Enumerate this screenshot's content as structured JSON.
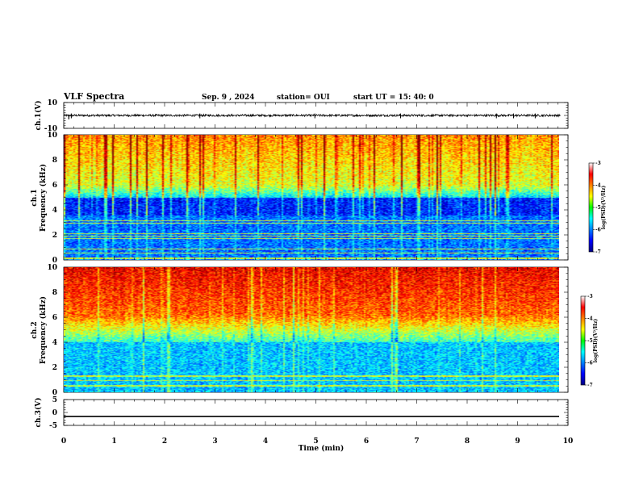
{
  "header": {
    "title": "VLF Spectra",
    "date": "Sep. 9  , 2024",
    "station": "station= OUI",
    "start": "start  UT =   15: 40: 0"
  },
  "chart_data": [
    {
      "type": "line",
      "panel": "ch1-waveform",
      "ylabel": "ch.1(V)",
      "ylim": [
        -10,
        10
      ],
      "yticks": [
        "10",
        "-10"
      ],
      "x_range_min": [
        0,
        9.85
      ],
      "baseline": 0,
      "series": [
        {
          "values_summary": "noise band approximately +/-1 V around 0, sparse spikes to about -2 V"
        }
      ]
    },
    {
      "type": "heatmap",
      "panel": "ch1-spectrogram",
      "ylabel": "ch.1\nFrequency  (kHz)",
      "ylim": [
        0,
        10
      ],
      "yticks": [
        "0",
        "2",
        "4",
        "6",
        "8",
        "10"
      ],
      "x_range_min": [
        0,
        9.85
      ],
      "colorbar": {
        "label": "log(PSD)(V²/Hz)",
        "ticks": [
          "-3",
          "-4",
          "-5",
          "-6",
          "-7"
        ],
        "range": [
          -7,
          -3
        ]
      },
      "profile": "green/yellow above 5 kHz with vertical sferic streaks, dark blue 3.5-5 kHz, banded blue/purple below 3.5 kHz"
    },
    {
      "type": "heatmap",
      "panel": "ch2-spectrogram",
      "ylabel": "ch.2\nFrequency  (kHz)",
      "ylim": [
        0,
        10
      ],
      "yticks": [
        "0",
        "2",
        "4",
        "6",
        "8",
        "10"
      ],
      "x_range_min": [
        0,
        9.85
      ],
      "colorbar": {
        "label": "log(PSD)(V²/Hz)",
        "ticks": [
          "-3",
          "-4",
          "-5",
          "-6",
          "-7"
        ],
        "range": [
          -7,
          -3
        ]
      },
      "profile": "red/orange above 6 kHz, yellow-green 4-6 kHz, cyan/blue below 4 kHz with horizontal lines"
    },
    {
      "type": "line",
      "panel": "ch3-waveform",
      "ylabel": "ch.3(V)",
      "ylim": [
        -5,
        5
      ],
      "yticks": [
        "5",
        "0",
        "-5"
      ],
      "x_range_min": [
        0,
        9.85
      ],
      "series": [
        {
          "values_summary": "flat at about -1.5 V",
          "level": -1.5
        }
      ]
    }
  ],
  "xaxis": {
    "label": "Time  (min)",
    "ticks": [
      "0",
      "1",
      "2",
      "3",
      "4",
      "5",
      "6",
      "7",
      "8",
      "9",
      "10"
    ],
    "range": [
      0,
      10
    ]
  }
}
